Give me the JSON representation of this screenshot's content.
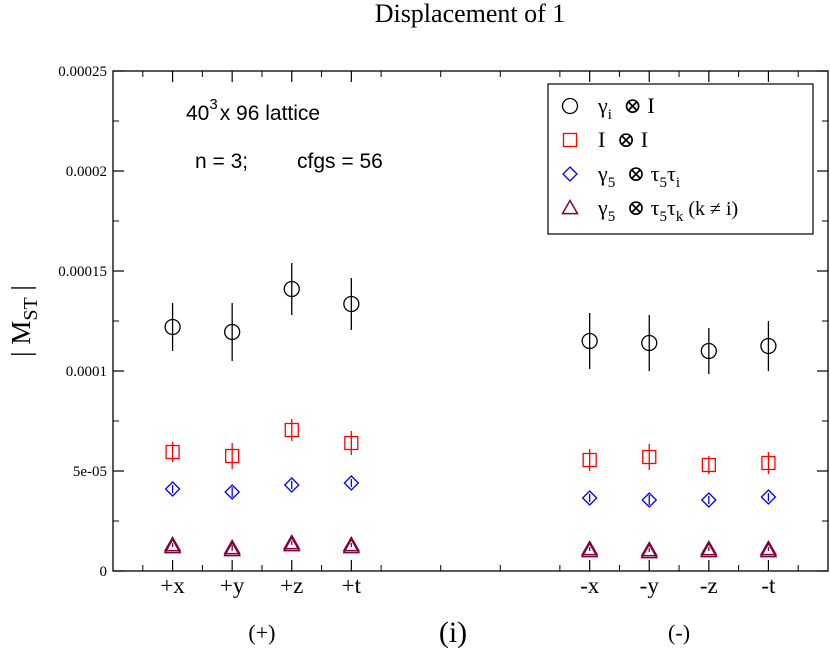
{
  "chart_data": {
    "type": "scatter",
    "title": "Displacement of 1",
    "ylabel_main": "| M",
    "ylabel_sub": "ST",
    "ylabel_tail": " |",
    "ylim": [
      0,
      0.00025
    ],
    "yticks": [
      {
        "value": 0,
        "label": "0"
      },
      {
        "value": 5e-05,
        "label": "5e-05"
      },
      {
        "value": 0.0001,
        "label": "0.0001"
      },
      {
        "value": 0.00015,
        "label": "0.00015"
      },
      {
        "value": 0.0002,
        "label": "0.0002"
      },
      {
        "value": 0.00025,
        "label": "0.00025"
      }
    ],
    "xlim": [
      0,
      12
    ],
    "categories": [
      {
        "x": 1,
        "label": "+x"
      },
      {
        "x": 2,
        "label": "+y"
      },
      {
        "x": 3,
        "label": "+z"
      },
      {
        "x": 4,
        "label": "+t"
      },
      {
        "x": 8,
        "label": "-x"
      },
      {
        "x": 9,
        "label": "-y"
      },
      {
        "x": 10,
        "label": "-z"
      },
      {
        "x": 11,
        "label": "-t"
      }
    ],
    "group_labels": [
      {
        "x": 2.5,
        "label": "(+)"
      },
      {
        "x": 9.5,
        "label": "(-)"
      }
    ],
    "panel_label": "(i)",
    "annotation_lattice": {
      "base": "40",
      "sup": "3",
      "rest": "x 96 lattice"
    },
    "annotation_params": {
      "n": "n = 3;",
      "cfgs": "cfgs = 56"
    },
    "legend_position": "top-right",
    "series": [
      {
        "marker": "circle",
        "color": "#000000",
        "legend": {
          "base": "γ",
          "sub": "i",
          "op": " ⊗ I",
          "sub2": "",
          "tail": ""
        },
        "points": [
          {
            "x": 1,
            "y": 0.000122,
            "err": 1.2e-05
          },
          {
            "x": 2,
            "y": 0.0001195,
            "err": 1.45e-05
          },
          {
            "x": 3,
            "y": 0.000141,
            "err": 1.3e-05
          },
          {
            "x": 4,
            "y": 0.0001335,
            "err": 1.3e-05
          },
          {
            "x": 8,
            "y": 0.000115,
            "err": 1.4e-05
          },
          {
            "x": 9,
            "y": 0.000114,
            "err": 1.4e-05
          },
          {
            "x": 10,
            "y": 0.00011,
            "err": 1.15e-05
          },
          {
            "x": 11,
            "y": 0.0001125,
            "err": 1.25e-05
          }
        ]
      },
      {
        "marker": "square",
        "color": "#ff0000",
        "legend": {
          "base": "I",
          "sub": "",
          "op": " ⊗ I",
          "sub2": "",
          "tail": ""
        },
        "points": [
          {
            "x": 1,
            "y": 5.95e-05,
            "err": 5e-06
          },
          {
            "x": 2,
            "y": 5.75e-05,
            "err": 6.5e-06
          },
          {
            "x": 3,
            "y": 7.05e-05,
            "err": 5.5e-06
          },
          {
            "x": 4,
            "y": 6.4e-05,
            "err": 6e-06
          },
          {
            "x": 8,
            "y": 5.55e-05,
            "err": 5.5e-06
          },
          {
            "x": 9,
            "y": 5.7e-05,
            "err": 6.5e-06
          },
          {
            "x": 10,
            "y": 5.3e-05,
            "err": 4.5e-06
          },
          {
            "x": 11,
            "y": 5.4e-05,
            "err": 5.5e-06
          }
        ]
      },
      {
        "marker": "diamond",
        "color": "#0000ff",
        "legend": {
          "base": "γ",
          "sub": "5",
          "op": " ⊗ τ",
          "sub2": "5",
          "mid": "τ",
          "sub3": "i",
          "tail": ""
        },
        "points": [
          {
            "x": 1,
            "y": 4.1e-05,
            "err": 2e-06
          },
          {
            "x": 2,
            "y": 3.95e-05,
            "err": 2.5e-06
          },
          {
            "x": 3,
            "y": 4.3e-05,
            "err": 2e-06
          },
          {
            "x": 4,
            "y": 4.4e-05,
            "err": 2e-06
          },
          {
            "x": 8,
            "y": 3.65e-05,
            "err": 2e-06
          },
          {
            "x": 9,
            "y": 3.55e-05,
            "err": 2.5e-06
          },
          {
            "x": 10,
            "y": 3.55e-05,
            "err": 2e-06
          },
          {
            "x": 11,
            "y": 3.7e-05,
            "err": 2e-06
          }
        ]
      },
      {
        "marker": "triangle",
        "color": "#800040",
        "legend": {
          "base": "γ",
          "sub": "5",
          "op": " ⊗ τ",
          "sub2": "5",
          "mid": "τ",
          "sub3": "k",
          "tail": " (k ≠ i)"
        },
        "points": [
          {
            "x": 1,
            "y": 1.3e-05,
            "err": 1e-06
          },
          {
            "x": 2,
            "y": 1.15e-05,
            "err": 1.5e-06
          },
          {
            "x": 3,
            "y": 1.4e-05,
            "err": 1e-06
          },
          {
            "x": 4,
            "y": 1.3e-05,
            "err": 1e-06
          },
          {
            "x": 8,
            "y": 1.1e-05,
            "err": 1e-06
          },
          {
            "x": 9,
            "y": 1.05e-05,
            "err": 1e-06
          },
          {
            "x": 10,
            "y": 1.1e-05,
            "err": 1e-06
          },
          {
            "x": 11,
            "y": 1.1e-05,
            "err": 1e-06
          }
        ]
      }
    ]
  }
}
